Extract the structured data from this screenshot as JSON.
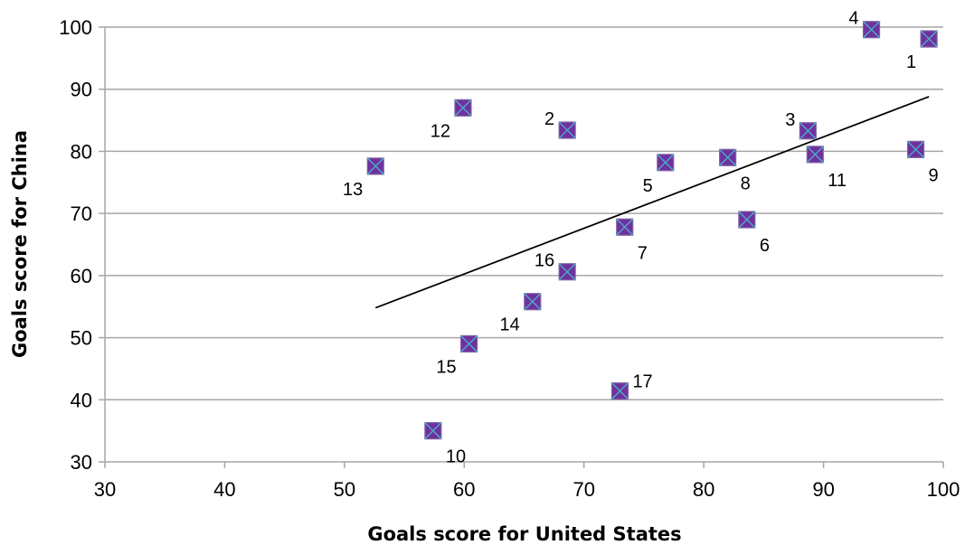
{
  "chart_data": {
    "type": "scatter",
    "title": "",
    "xlabel": "Goals score for United States",
    "ylabel": "Goals score for China",
    "xlim": [
      30,
      100
    ],
    "ylim": [
      30,
      100
    ],
    "xticks": [
      30,
      40,
      50,
      60,
      70,
      80,
      90,
      100
    ],
    "yticks": [
      30,
      40,
      50,
      60,
      70,
      80,
      90,
      100
    ],
    "grid": "horizontal",
    "legend": "none",
    "marker": "square-x",
    "colors": {
      "marker_fill": "#7030a0",
      "marker_edge": "#8064a2",
      "marker_cross": "#4bacc6",
      "gridline": "#a6a6a6",
      "trendline": "#000000"
    },
    "points": [
      {
        "label": "1",
        "x": 98.8,
        "y": 98.1,
        "label_pos": "bl"
      },
      {
        "label": "2",
        "x": 68.6,
        "y": 83.4,
        "label_pos": "tl"
      },
      {
        "label": "3",
        "x": 88.7,
        "y": 83.3,
        "label_pos": "tl"
      },
      {
        "label": "4",
        "x": 94.0,
        "y": 99.6,
        "label_pos": "tl"
      },
      {
        "label": "5",
        "x": 76.8,
        "y": 78.2,
        "label_pos": "bl"
      },
      {
        "label": "6",
        "x": 83.6,
        "y": 69.0,
        "label_pos": "br"
      },
      {
        "label": "7",
        "x": 73.4,
        "y": 67.8,
        "label_pos": "br"
      },
      {
        "label": "8",
        "x": 82.0,
        "y": 79.0,
        "label_pos": "br"
      },
      {
        "label": "9",
        "x": 97.7,
        "y": 80.3,
        "label_pos": "br"
      },
      {
        "label": "10",
        "x": 57.4,
        "y": 35.0,
        "label_pos": "br"
      },
      {
        "label": "11",
        "x": 89.3,
        "y": 79.5,
        "label_pos": "br"
      },
      {
        "label": "12",
        "x": 59.9,
        "y": 87.0,
        "label_pos": "bl"
      },
      {
        "label": "13",
        "x": 52.6,
        "y": 77.6,
        "label_pos": "bl"
      },
      {
        "label": "14",
        "x": 65.7,
        "y": 55.8,
        "label_pos": "bl"
      },
      {
        "label": "15",
        "x": 60.4,
        "y": 49.0,
        "label_pos": "bl"
      },
      {
        "label": "16",
        "x": 68.6,
        "y": 60.6,
        "label_pos": "tl"
      },
      {
        "label": "17",
        "x": 73.0,
        "y": 41.4,
        "label_pos": "tr"
      }
    ],
    "trendline": {
      "x": [
        52.6,
        98.8
      ],
      "y": [
        54.8,
        88.8
      ]
    }
  }
}
